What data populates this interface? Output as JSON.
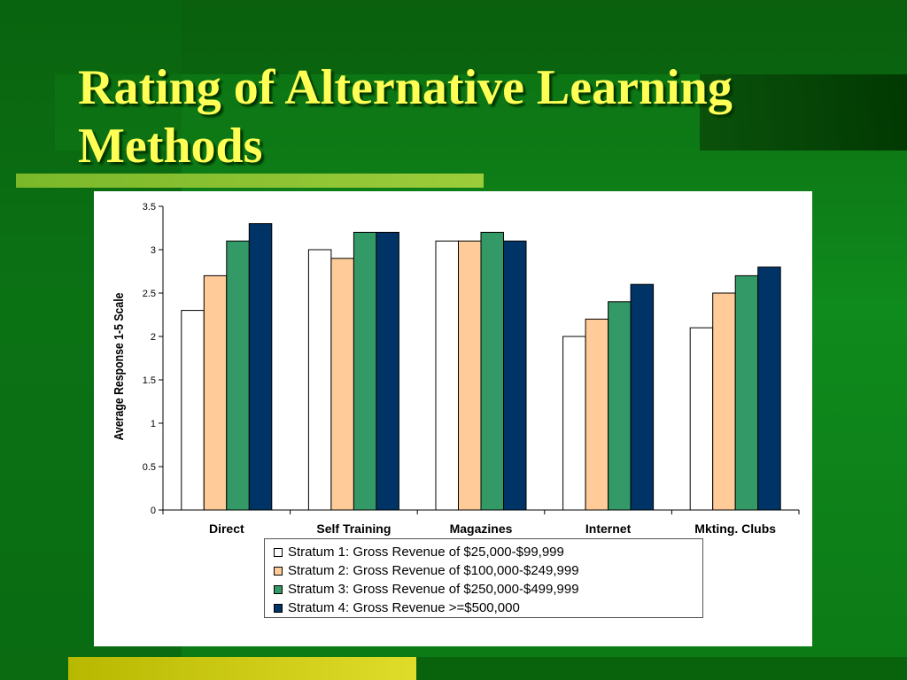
{
  "slide": {
    "title": "Rating of Alternative Learning Methods"
  },
  "chart_data": {
    "type": "bar",
    "title": "",
    "xlabel": "",
    "ylabel": "Average Response 1-5 Scale",
    "ylim": [
      0,
      3.5
    ],
    "yticks": [
      "0",
      "0.5",
      "1",
      "1.5",
      "2",
      "2.5",
      "3",
      "3.5"
    ],
    "categories": [
      "Direct",
      "Self Training",
      "Magazines",
      "Internet",
      "Mkting. Clubs"
    ],
    "grid": false,
    "legend_position": "bottom",
    "series": [
      {
        "name": "Stratum 1: Gross Revenue of $25,000-$99,999",
        "color": "#ffffff",
        "values": [
          2.3,
          3.0,
          3.1,
          2.0,
          2.1
        ]
      },
      {
        "name": "Stratum 2: Gross Revenue of $100,000-$249,999",
        "color": "#ffcc99",
        "values": [
          2.7,
          2.9,
          3.1,
          2.2,
          2.5
        ]
      },
      {
        "name": "Stratum 3: Gross Revenue of $250,000-$499,999",
        "color": "#339966",
        "values": [
          3.1,
          3.2,
          3.2,
          2.4,
          2.7
        ]
      },
      {
        "name": "Stratum 4: Gross Revenue >=$500,000",
        "color": "#003366",
        "values": [
          3.3,
          3.2,
          3.1,
          2.6,
          2.8
        ]
      }
    ]
  }
}
